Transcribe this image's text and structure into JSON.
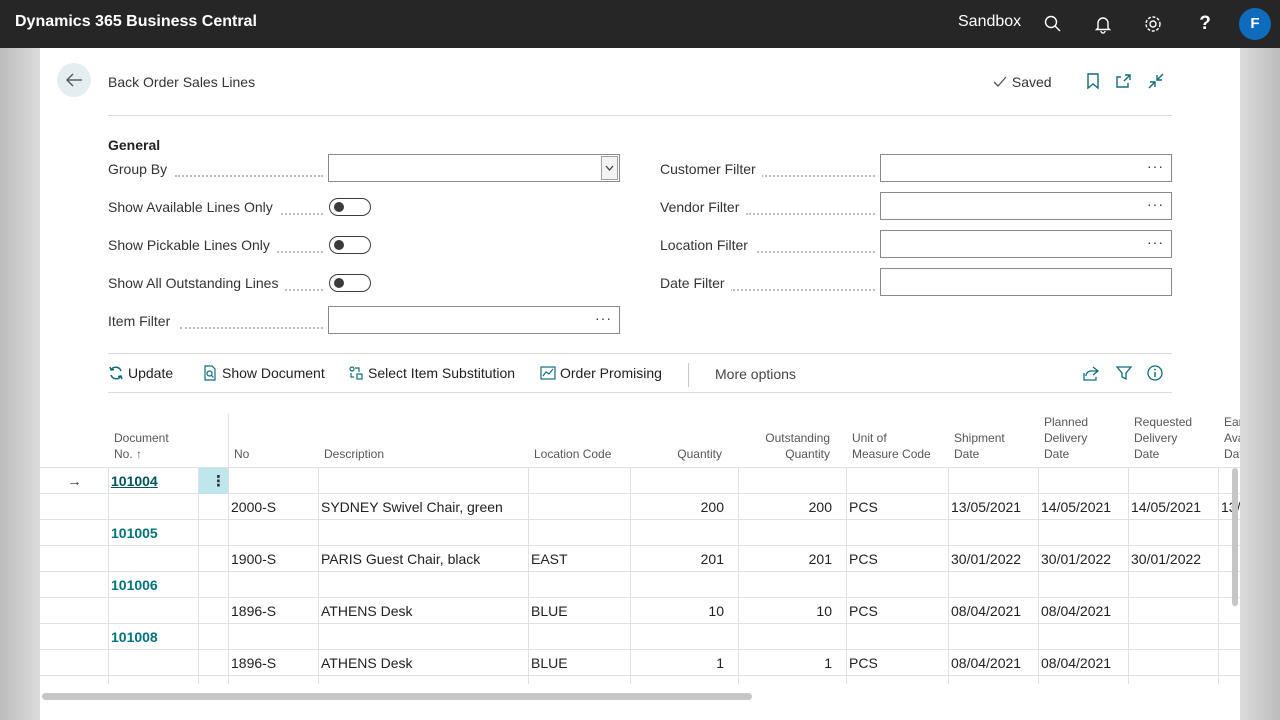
{
  "topbar": {
    "app_title": "Dynamics 365 Business Central",
    "environment": "Sandbox",
    "avatar_initial": "F"
  },
  "page": {
    "title": "Back Order Sales Lines",
    "saved_label": "Saved"
  },
  "general": {
    "section_title": "General",
    "group_by_label": "Group By",
    "group_by_value": "",
    "show_available_label": "Show Available Lines Only",
    "show_pickable_label": "Show Pickable Lines Only",
    "show_all_outstanding_label": "Show All Outstanding Lines",
    "item_filter_label": "Item Filter",
    "customer_filter_label": "Customer Filter",
    "vendor_filter_label": "Vendor Filter",
    "location_filter_label": "Location Filter",
    "date_filter_label": "Date Filter",
    "ellipsis": "···",
    "toggles": {
      "show_available": false,
      "show_pickable": false,
      "show_all_outstanding": false
    }
  },
  "actions": {
    "update": "Update",
    "show_document": "Show Document",
    "select_item_substitution": "Select Item Substitution",
    "order_promising": "Order Promising",
    "more_options": "More options"
  },
  "grid": {
    "headers": {
      "document_no_1": "Document",
      "document_no_2": "No. ↑",
      "no": "No",
      "description": "Description",
      "location_code": "Location Code",
      "quantity": "Quantity",
      "outstanding_1": "Outstanding",
      "outstanding_2": "Quantity",
      "uom_1": "Unit of",
      "uom_2": "Measure Code",
      "shipment_1": "Shipment",
      "shipment_2": "Date",
      "planned_1": "Planned",
      "planned_2": "Delivery",
      "planned_3": "Date",
      "requested_1": "Requested",
      "requested_2": "Delivery",
      "requested_3": "Date",
      "earliest_1": "Ear",
      "earliest_2": "Ava",
      "earliest_3": "Dat"
    },
    "groups": [
      {
        "doc": "101004",
        "no": "2000-S",
        "description": "SYDNEY Swivel Chair, green",
        "location": "",
        "quantity": "200",
        "outstanding": "200",
        "uom": "PCS",
        "shipment": "13/05/2021",
        "planned": "14/05/2021",
        "requested": "14/05/2021",
        "earliest": "13/"
      },
      {
        "doc": "101005",
        "no": "1900-S",
        "description": "PARIS Guest Chair, black",
        "location": "EAST",
        "quantity": "201",
        "outstanding": "201",
        "uom": "PCS",
        "shipment": "30/01/2022",
        "planned": "30/01/2022",
        "requested": "30/01/2022",
        "earliest": ""
      },
      {
        "doc": "101006",
        "no": "1896-S",
        "description": "ATHENS Desk",
        "location": "BLUE",
        "quantity": "10",
        "outstanding": "10",
        "uom": "PCS",
        "shipment": "08/04/2021",
        "planned": "08/04/2021",
        "requested": "",
        "earliest": ""
      },
      {
        "doc": "101008",
        "no": "1896-S",
        "description": "ATHENS Desk",
        "location": "BLUE",
        "quantity": "1",
        "outstanding": "1",
        "uom": "PCS",
        "shipment": "08/04/2021",
        "planned": "08/04/2021",
        "requested": "",
        "earliest": ""
      }
    ]
  },
  "colors": {
    "topbar": "#262626",
    "accent": "#00727c",
    "avatar": "#0f6cbd",
    "selected_cell": "#bfe5ed"
  }
}
